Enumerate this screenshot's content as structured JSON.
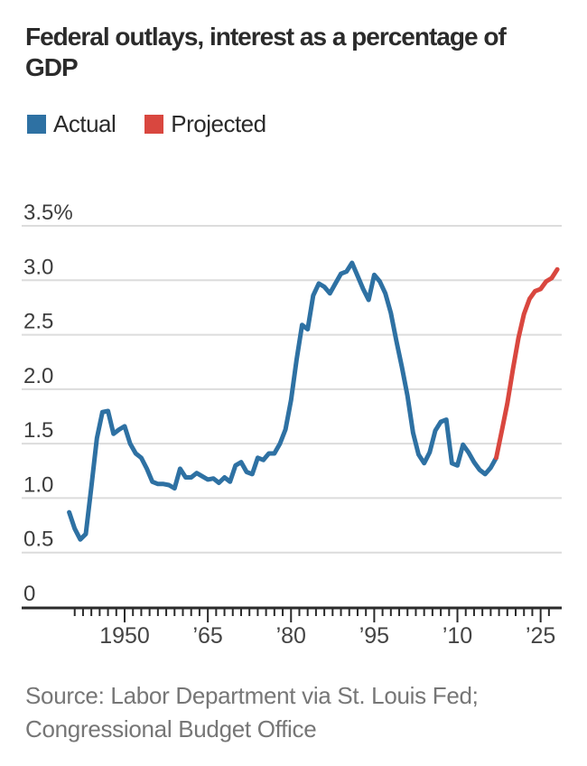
{
  "title": {
    "line1": "Federal outlays, interest as a percentage of",
    "line2": "GDP"
  },
  "legend": [
    {
      "label": "Actual",
      "color": "#2e71a3"
    },
    {
      "label": "Projected",
      "color": "#d9473f"
    }
  ],
  "source": {
    "line1": "Source: Labor Department via St. Louis Fed;",
    "line2": "Congressional Budget Office"
  },
  "colors": {
    "actual": "#2e71a3",
    "projected": "#d9473f",
    "grid": "#dcdcdc",
    "axis": "#2b2b2b",
    "tick_label": "#444444",
    "y_label": "#3d3d3d"
  },
  "chart_data": {
    "type": "line",
    "title": "Federal outlays, interest as a percentage of GDP",
    "xlabel": "",
    "ylabel": "",
    "grid": true,
    "legend_position": "top",
    "y_range": [
      0,
      3.5
    ],
    "x_range": [
      1940,
      2028
    ],
    "y_ticks": [
      {
        "value": 3.5,
        "label": "3.5%"
      },
      {
        "value": 3.0,
        "label": "3.0"
      },
      {
        "value": 2.5,
        "label": "2.5"
      },
      {
        "value": 2.0,
        "label": "2.0"
      },
      {
        "value": 1.5,
        "label": "1.5"
      },
      {
        "value": 1.0,
        "label": "1.0"
      },
      {
        "value": 0.5,
        "label": "0.5"
      },
      {
        "value": 0,
        "label": "0"
      }
    ],
    "x_ticks": [
      {
        "year": 1950,
        "label": "1950"
      },
      {
        "year": 1965,
        "label": "’65"
      },
      {
        "year": 1980,
        "label": "’80"
      },
      {
        "year": 1995,
        "label": "’95"
      },
      {
        "year": 2010,
        "label": "’10"
      },
      {
        "year": 2025,
        "label": "’25"
      }
    ],
    "minor_tick_step_years": 1.5,
    "series": [
      {
        "name": "Actual",
        "color": "#2e71a3",
        "points": [
          [
            1940,
            0.87
          ],
          [
            1941,
            0.72
          ],
          [
            1942,
            0.62
          ],
          [
            1943,
            0.67
          ],
          [
            1944,
            1.1
          ],
          [
            1945,
            1.55
          ],
          [
            1946,
            1.79
          ],
          [
            1947,
            1.8
          ],
          [
            1948,
            1.59
          ],
          [
            1949,
            1.63
          ],
          [
            1950,
            1.66
          ],
          [
            1951,
            1.5
          ],
          [
            1952,
            1.41
          ],
          [
            1953,
            1.37
          ],
          [
            1954,
            1.27
          ],
          [
            1955,
            1.15
          ],
          [
            1956,
            1.13
          ],
          [
            1957,
            1.13
          ],
          [
            1958,
            1.12
          ],
          [
            1959,
            1.09
          ],
          [
            1960,
            1.27
          ],
          [
            1961,
            1.19
          ],
          [
            1962,
            1.19
          ],
          [
            1963,
            1.23
          ],
          [
            1964,
            1.2
          ],
          [
            1965,
            1.17
          ],
          [
            1966,
            1.18
          ],
          [
            1967,
            1.14
          ],
          [
            1968,
            1.19
          ],
          [
            1969,
            1.15
          ],
          [
            1970,
            1.3
          ],
          [
            1971,
            1.33
          ],
          [
            1972,
            1.24
          ],
          [
            1973,
            1.22
          ],
          [
            1974,
            1.37
          ],
          [
            1975,
            1.35
          ],
          [
            1976,
            1.41
          ],
          [
            1977,
            1.41
          ],
          [
            1978,
            1.5
          ],
          [
            1979,
            1.63
          ],
          [
            1980,
            1.9
          ],
          [
            1981,
            2.27
          ],
          [
            1982,
            2.59
          ],
          [
            1983,
            2.55
          ],
          [
            1984,
            2.86
          ],
          [
            1985,
            2.97
          ],
          [
            1986,
            2.94
          ],
          [
            1987,
            2.88
          ],
          [
            1988,
            2.97
          ],
          [
            1989,
            3.06
          ],
          [
            1990,
            3.08
          ],
          [
            1991,
            3.16
          ],
          [
            1992,
            3.04
          ],
          [
            1993,
            2.92
          ],
          [
            1994,
            2.82
          ],
          [
            1995,
            3.05
          ],
          [
            1996,
            2.99
          ],
          [
            1997,
            2.88
          ],
          [
            1998,
            2.7
          ],
          [
            1999,
            2.44
          ],
          [
            2000,
            2.2
          ],
          [
            2001,
            1.94
          ],
          [
            2002,
            1.6
          ],
          [
            2003,
            1.4
          ],
          [
            2004,
            1.32
          ],
          [
            2005,
            1.42
          ],
          [
            2006,
            1.62
          ],
          [
            2007,
            1.7
          ],
          [
            2008,
            1.72
          ],
          [
            2009,
            1.32
          ],
          [
            2010,
            1.3
          ],
          [
            2011,
            1.49
          ],
          [
            2012,
            1.42
          ],
          [
            2013,
            1.33
          ],
          [
            2014,
            1.26
          ],
          [
            2015,
            1.22
          ],
          [
            2016,
            1.28
          ],
          [
            2017,
            1.37
          ]
        ]
      },
      {
        "name": "Projected",
        "color": "#d9473f",
        "points": [
          [
            2017,
            1.37
          ],
          [
            2018,
            1.62
          ],
          [
            2019,
            1.87
          ],
          [
            2020,
            2.18
          ],
          [
            2021,
            2.47
          ],
          [
            2022,
            2.69
          ],
          [
            2023,
            2.83
          ],
          [
            2024,
            2.9
          ],
          [
            2025,
            2.92
          ],
          [
            2026,
            2.99
          ],
          [
            2027,
            3.02
          ],
          [
            2028,
            3.1
          ]
        ]
      }
    ]
  }
}
